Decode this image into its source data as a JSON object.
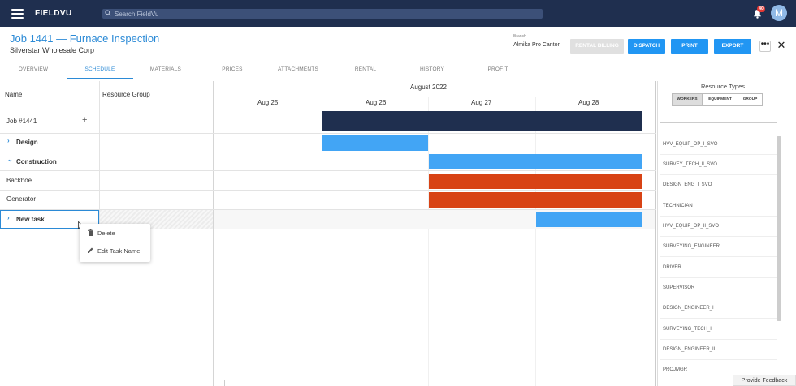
{
  "header": {
    "brand": "FIELDVU",
    "search_placeholder": "Search FieldVu",
    "notification_count": "40",
    "avatar_initial": "M"
  },
  "job": {
    "title": "Job 1441 — Furnace Inspection",
    "customer": "Silverstar Wholesale Corp",
    "branch_label": "Branch",
    "branch_value": "Almika Pro Canton"
  },
  "actions": {
    "rental_billing": "RENTAL BILLING",
    "dispatch": "DISPATCH",
    "print": "PRINT",
    "export": "EXPORT",
    "more": "•••",
    "close": "✕"
  },
  "tabs": [
    "OVERVIEW",
    "SCHEDULE",
    "MATERIALS",
    "PRICES",
    "ATTACHMENTS",
    "RENTAL",
    "HISTORY",
    "PROFIT"
  ],
  "active_tab": "SCHEDULE",
  "grid": {
    "col_name": "Name",
    "col_resource_group": "Resource Group",
    "month": "August 2022",
    "days": [
      "Aug 25",
      "Aug 26",
      "Aug 27",
      "Aug 28"
    ],
    "rows": [
      {
        "name": "Job #1441",
        "expand": "",
        "action": "+"
      },
      {
        "name": "Design",
        "expand": "›"
      },
      {
        "name": "Construction",
        "expand": "⌄"
      },
      {
        "name": "Backhoe",
        "expand": ""
      },
      {
        "name": "Generator",
        "expand": ""
      },
      {
        "name": "New task",
        "expand": "›"
      }
    ]
  },
  "context_menu": {
    "delete": "Delete",
    "edit": "Edit Task Name"
  },
  "resource_panel": {
    "title": "Resource Types",
    "segments": [
      "WORKERS",
      "EQUIPMENT",
      "GROUP"
    ],
    "selected_segment": "WORKERS",
    "types": [
      "HVV_EQUIP_OP_I_SVO",
      "SURVEY_TECH_II_SVO",
      "DESIGN_ENG_I_SVO",
      "TECHNICIAN",
      "HVV_EQUIP_OP_II_SVO",
      "SURVEYING_ENGINEER",
      "DRIVER",
      "SUPERVISOR",
      "DESIGN_ENGINEER_I",
      "SURVEYING_TECH_II",
      "DESIGN_ENGINEER_II",
      "PROJMGR"
    ]
  },
  "feedback": "Provide Feedback",
  "colors": {
    "navy": "#1f2f4f",
    "accent": "#2b8ad6",
    "bar_blue": "#42a5f5",
    "bar_orange": "#d84315"
  }
}
